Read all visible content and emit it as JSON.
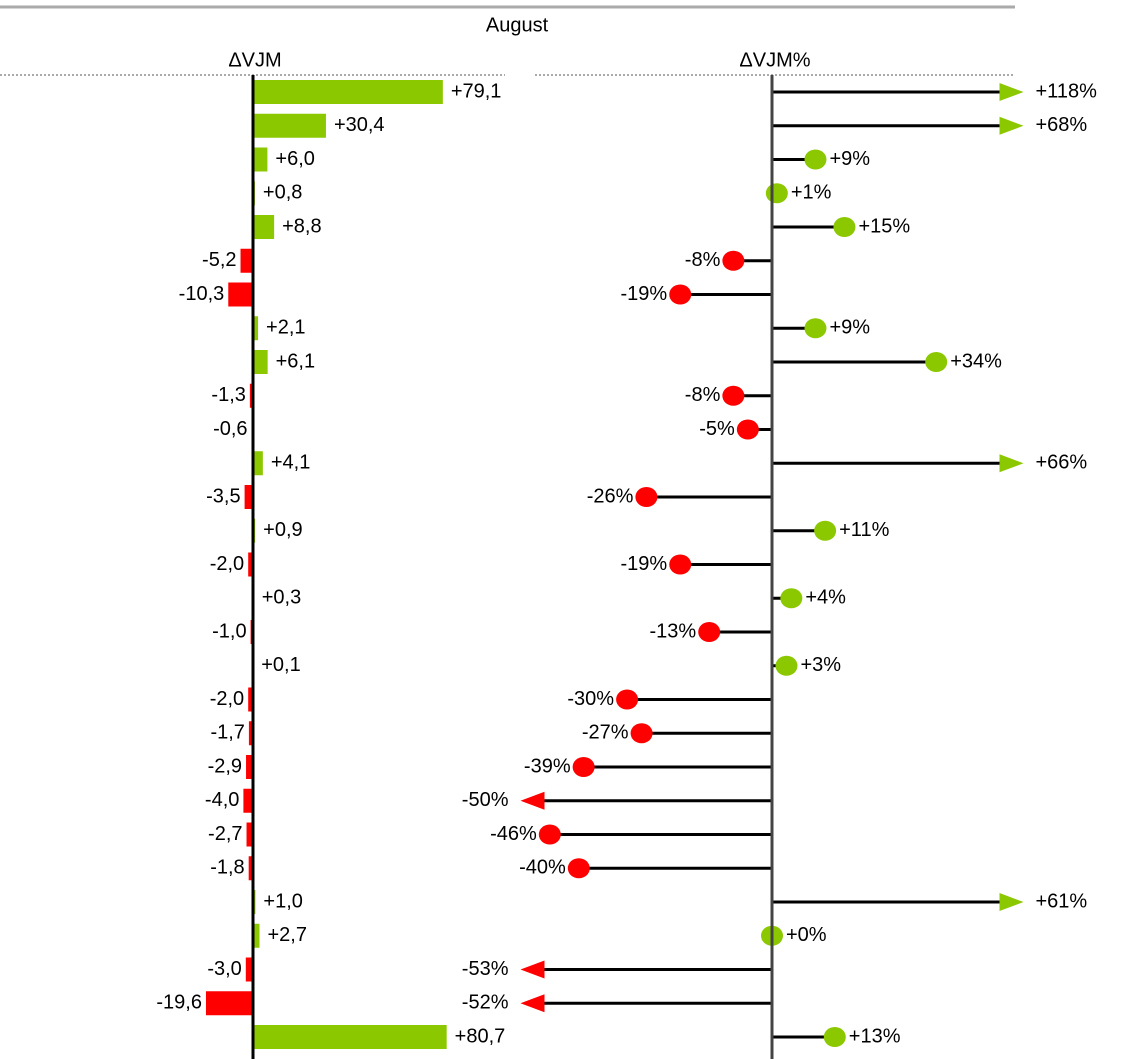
{
  "title": "August",
  "chart_data": [
    {
      "type": "bar",
      "title": "ΔVJM",
      "values": [
        79.1,
        30.4,
        6.0,
        0.8,
        8.8,
        -5.2,
        -10.3,
        2.1,
        6.1,
        -1.3,
        -0.6,
        4.1,
        -3.5,
        0.9,
        -2.0,
        0.3,
        -1.0,
        0.1,
        -2.0,
        -1.7,
        -2.9,
        -4.0,
        -2.7,
        -1.8,
        1.0,
        2.7,
        -3.0,
        -19.6,
        80.7
      ],
      "value_labels": [
        "+79,1",
        "+30,4",
        "+6,0",
        "+0,8",
        "+8,8",
        "-5,2",
        "-10,3",
        "+2,1",
        "+6,1",
        "-1,3",
        "-0,6",
        "+4,1",
        "-3,5",
        "+0,9",
        "-2,0",
        "+0,3",
        "-1,0",
        "+0,1",
        "-2,0",
        "-1,7",
        "-2,9",
        "-4,0",
        "-2,7",
        "-1,8",
        "+1,0",
        "+2,7",
        "-3,0",
        "-19,6",
        "+80,7"
      ],
      "xlim": [
        -100,
        100
      ],
      "positive_color": "#8cc800",
      "negative_color": "#ff0000"
    },
    {
      "type": "lollipop",
      "title": "ΔVJM%",
      "values": [
        118,
        68,
        9,
        1,
        15,
        -8,
        -19,
        9,
        34,
        -8,
        -5,
        66,
        -26,
        11,
        -19,
        4,
        -13,
        3,
        -30,
        -27,
        -39,
        -50,
        -46,
        -40,
        61,
        0,
        -53,
        -52,
        13
      ],
      "value_labels": [
        "+118%",
        "+68%",
        "+9%",
        "+1%",
        "+15%",
        "-8%",
        "-19%",
        "+9%",
        "+34%",
        "-8%",
        "-5%",
        "+66%",
        "-26%",
        "+11%",
        "-19%",
        "+4%",
        "-13%",
        "+3%",
        "-30%",
        "-27%",
        "-39%",
        "-50%",
        "-46%",
        "-40%",
        "+61%",
        "+0%",
        "-53%",
        "-52%",
        "+13%"
      ],
      "xlim": [
        -50,
        50
      ],
      "positive_color": "#8cc800",
      "negative_color": "#ff0000"
    }
  ]
}
